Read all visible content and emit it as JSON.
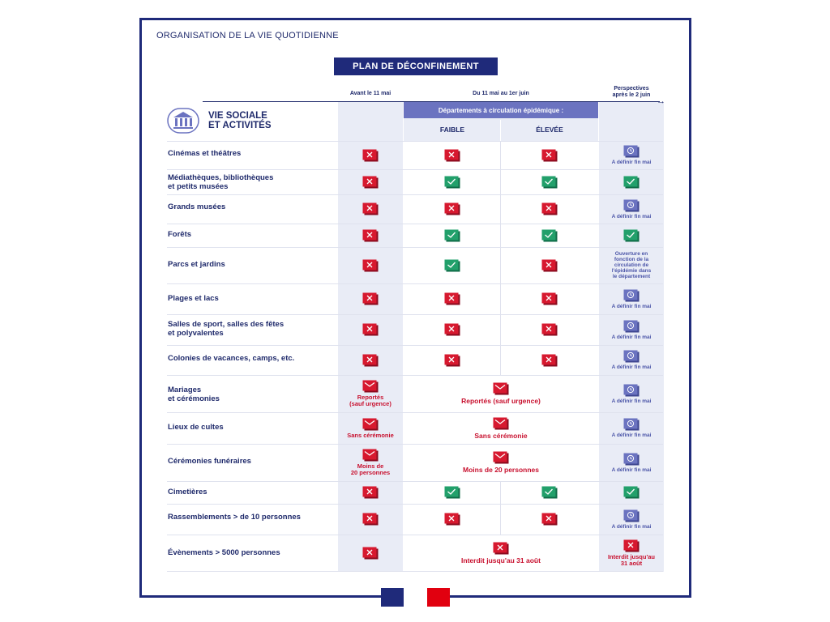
{
  "section_title": "ORGANISATION DE LA VIE QUOTIDIENNE",
  "plan_title": "PLAN DE DÉCONFINEMENT",
  "columns": {
    "avant": "Avant le 11 mai",
    "du11": "Du 11 mai au 1er juin",
    "perspectives_1": "Perspectives",
    "perspectives_2": "après le 2 juin",
    "departements": "Départements à circulation épidémique :",
    "faible": "FAIBLE",
    "elevee": "ÉLEVÉE"
  },
  "category": {
    "line1": "VIE SOCIALE",
    "line2": "ET ACTIVITÉS",
    "icon": "museum-building-icon"
  },
  "icons": {
    "forbidden": "red-cross-icon",
    "allowed": "green-check-icon",
    "pending": "blue-clock-icon",
    "restricted": "red-envelope-icon"
  },
  "colors": {
    "navy": "#1f2a7a",
    "red": "#c8102e",
    "green": "#1e9d6b",
    "blue": "#6b73c0",
    "shade": "#e9ecf6"
  },
  "notes": {
    "a_definir": "A définir fin mai",
    "ouverture_1": "Ouverture en",
    "ouverture_2": "fonction de la",
    "ouverture_3": "circulation de",
    "ouverture_4": "l'épidémie dans",
    "ouverture_5": "le département",
    "reportes_1": "Reportés",
    "reportes_2": "(sauf urgence)",
    "reportes_full": "Reportés (sauf urgence)",
    "sans_ceremonie": "Sans cérémonie",
    "moins20_1": "Moins de",
    "moins20_2": "20 personnes",
    "moins20_full": "Moins de 20 personnes",
    "interdit_full": "Interdit jusqu'au 31 août",
    "interdit_1": "Interdit jusqu'au",
    "interdit_2": "31 août"
  },
  "rows": [
    {
      "label": "Cinémas et théâtres"
    },
    {
      "label_1": "Médiathèques, bibliothèques",
      "label_2": "et petits musées"
    },
    {
      "label": "Grands musées"
    },
    {
      "label": "Forêts"
    },
    {
      "label": "Parcs et jardins"
    },
    {
      "label": "Plages et lacs"
    },
    {
      "label_1": "Salles de sport, salles des fêtes",
      "label_2": "et polyvalentes"
    },
    {
      "label": "Colonies de vacances, camps, etc."
    },
    {
      "label_1": "Mariages",
      "label_2": "et cérémonies"
    },
    {
      "label": "Lieux de cultes"
    },
    {
      "label": "Cérémonies funéraires"
    },
    {
      "label": "Cimetières"
    },
    {
      "label": "Rassemblements > de 10 personnes"
    },
    {
      "label": "Évènements > 5000 personnes"
    }
  ],
  "flag": {
    "name": "french-republic-logo"
  }
}
